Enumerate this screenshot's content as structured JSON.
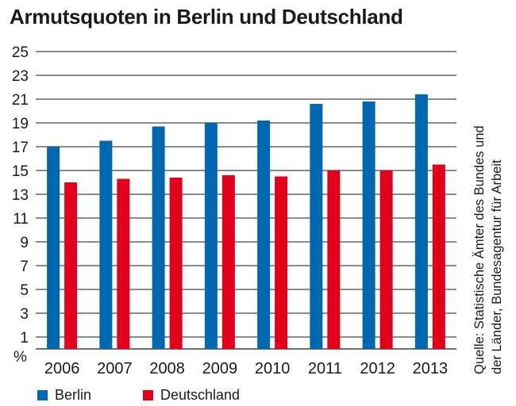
{
  "chart_data": {
    "type": "bar",
    "title": "Armutsquoten in Berlin und Deutschland",
    "categories": [
      "2006",
      "2007",
      "2008",
      "2009",
      "2010",
      "2011",
      "2012",
      "2013"
    ],
    "series": [
      {
        "name": "Berlin",
        "color": "#0067b1",
        "values": [
          17.0,
          17.5,
          18.7,
          19.0,
          19.2,
          20.6,
          20.8,
          21.4
        ]
      },
      {
        "name": "Deutschland",
        "color": "#e3001b",
        "values": [
          14.0,
          14.3,
          14.4,
          14.6,
          14.5,
          15.0,
          15.0,
          15.5
        ]
      }
    ],
    "ylim": [
      0,
      25
    ],
    "yticks": [
      1,
      3,
      5,
      7,
      9,
      11,
      13,
      15,
      17,
      19,
      21,
      23,
      25
    ],
    "yunit": "%",
    "xlabel": "",
    "ylabel": "%",
    "grid": true,
    "legend_position": "bottom-left",
    "source": [
      "Quelle: Statistische Ämter des Bundes und",
      "der Länder, Bundesagentur für Arbeit"
    ]
  }
}
